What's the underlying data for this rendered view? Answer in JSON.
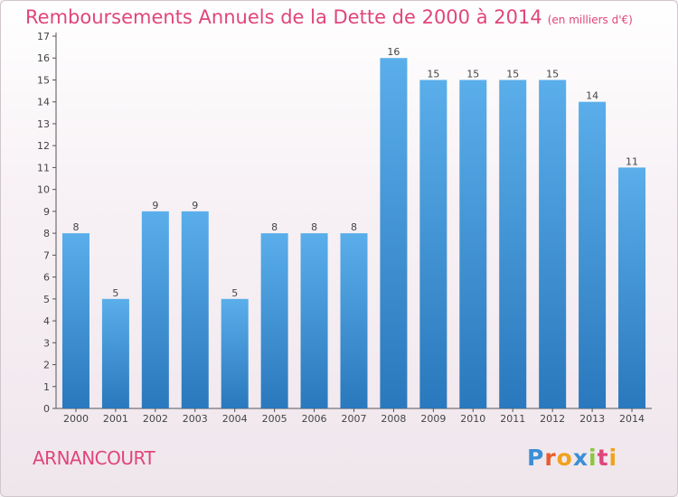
{
  "title": {
    "main": "Remboursements Annuels de la Dette de 2000 à 2014",
    "unit": "(en milliers d'€)"
  },
  "commune": "ARNANCOURT",
  "logo": {
    "text": "Proxiti",
    "letters": [
      "P",
      "r",
      "o",
      "x",
      "i",
      "t",
      "i"
    ]
  },
  "colors": {
    "title": "#e0457b",
    "bar_top": "#5aaeea",
    "bar_bottom": "#2a78bd"
  },
  "chart_data": {
    "type": "bar",
    "categories": [
      "2000",
      "2001",
      "2002",
      "2003",
      "2004",
      "2005",
      "2006",
      "2007",
      "2008",
      "2009",
      "2010",
      "2011",
      "2012",
      "2013",
      "2014"
    ],
    "values": [
      8,
      5,
      9,
      9,
      5,
      8,
      8,
      8,
      16,
      15,
      15,
      15,
      15,
      14,
      11
    ],
    "data_labels": [
      "8",
      "5",
      "9",
      "9",
      "5",
      "8",
      "8",
      "8",
      "16",
      "15",
      "15",
      "15",
      "15",
      "14",
      "11"
    ],
    "y_ticks": [
      "0",
      "1",
      "2",
      "3",
      "4",
      "5",
      "6",
      "7",
      "8",
      "9",
      "10",
      "11",
      "12",
      "13",
      "14",
      "15",
      "16",
      "17"
    ],
    "ylim": [
      0,
      17
    ],
    "grid": false,
    "legend": "none"
  }
}
